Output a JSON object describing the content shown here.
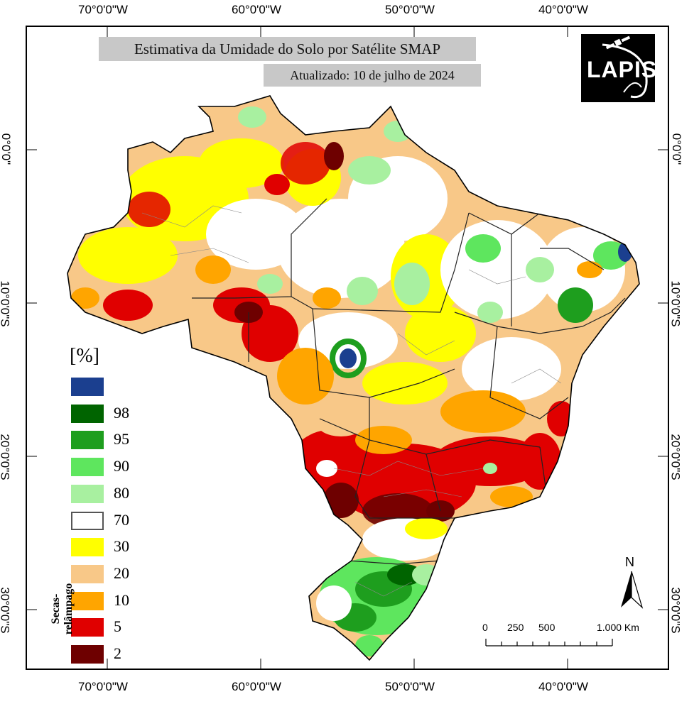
{
  "title": "Estimativa da Umidade do Solo por Satélite SMAP",
  "updated": "Atualizado: 10 de julho de 2024",
  "logo_text": "LAPIS",
  "graticule": {
    "top": [
      "70°0'0\"W",
      "60°0'0\"W",
      "50°0'0\"W",
      "40°0'0\"W"
    ],
    "bottom": [
      "70°0'0\"W",
      "60°0'0\"W",
      "50°0'0\"W",
      "40°0'0\"W"
    ],
    "left": [
      "0°0'0\"",
      "10°0'0\"S",
      "20°0'0\"S",
      "30°0'0\"S"
    ],
    "right": [
      "0°0'0\"",
      "10°0'0\"S",
      "20°0'0\"S",
      "30°0'0\"S"
    ]
  },
  "legend": {
    "unit": "[%]",
    "side_label": "Secas-relâmpago",
    "items": [
      {
        "label": "",
        "color": "#1b3f8f"
      },
      {
        "label": "98",
        "color": "#006400"
      },
      {
        "label": "95",
        "color": "#1e9e1e"
      },
      {
        "label": "90",
        "color": "#5ee65e"
      },
      {
        "label": "80",
        "color": "#a8f0a0"
      },
      {
        "label": "70",
        "color": "#ffffff"
      },
      {
        "label": "30",
        "color": "#ffff00"
      },
      {
        "label": "20",
        "color": "#f8c888"
      },
      {
        "label": "10",
        "color": "#ffa500"
      },
      {
        "label": "5",
        "color": "#e00000"
      },
      {
        "label": "2",
        "color": "#6e0000"
      }
    ]
  },
  "north_label": "N",
  "scale_bar": {
    "labels": [
      "0",
      "250",
      "500",
      "1.000 Km"
    ]
  },
  "colors": {
    "background": "#ffffff",
    "title_box": "#c8c8c8",
    "boundary": "#000000"
  }
}
